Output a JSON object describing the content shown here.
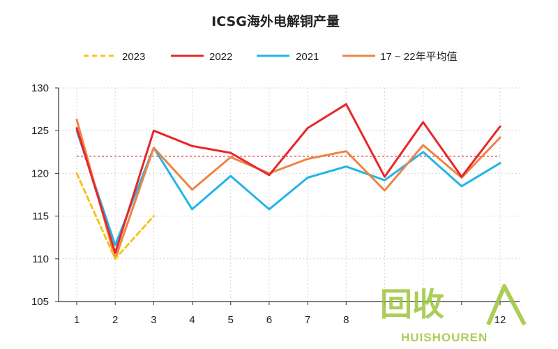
{
  "chart_data": {
    "type": "line",
    "title": "ICSG海外电解铜产量",
    "xlabel": "",
    "ylabel": "",
    "x": [
      1,
      2,
      3,
      4,
      5,
      6,
      7,
      8,
      9,
      10,
      11,
      12
    ],
    "x_tick_labels": [
      "1",
      "2",
      "3",
      "4",
      "5",
      "6",
      "7",
      "8",
      "",
      "",
      "",
      "12"
    ],
    "ylim": [
      105,
      130
    ],
    "y_ticks": [
      105,
      110,
      115,
      120,
      125,
      130
    ],
    "grid": true,
    "legend_position": "top",
    "reference_line": {
      "value": 122,
      "color": "#e8262b",
      "style": "dotted"
    },
    "series": [
      {
        "name": "2023",
        "color": "#f5c518",
        "style": "dashed",
        "values": [
          120.0,
          110.0,
          115.0,
          null,
          null,
          null,
          null,
          null,
          null,
          null,
          null,
          null
        ]
      },
      {
        "name": "2022",
        "color": "#e8262b",
        "style": "solid",
        "values": [
          125.3,
          110.7,
          125.0,
          123.2,
          122.4,
          119.8,
          125.3,
          128.1,
          119.6,
          126.0,
          119.6,
          125.5
        ]
      },
      {
        "name": "2021",
        "color": "#23b4e8",
        "style": "solid",
        "values": [
          125.0,
          111.6,
          123.0,
          115.8,
          119.7,
          115.8,
          119.5,
          120.8,
          119.2,
          122.5,
          118.5,
          121.2
        ]
      },
      {
        "name": "17 ~ 22年平均值",
        "color": "#ee8444",
        "style": "solid",
        "values": [
          126.3,
          110.0,
          123.0,
          118.1,
          121.9,
          120.0,
          121.7,
          122.6,
          118.0,
          123.3,
          119.5,
          124.2
        ]
      }
    ]
  },
  "watermark": {
    "logo_text": "回收",
    "brand_text": "HUISHOUREN"
  }
}
